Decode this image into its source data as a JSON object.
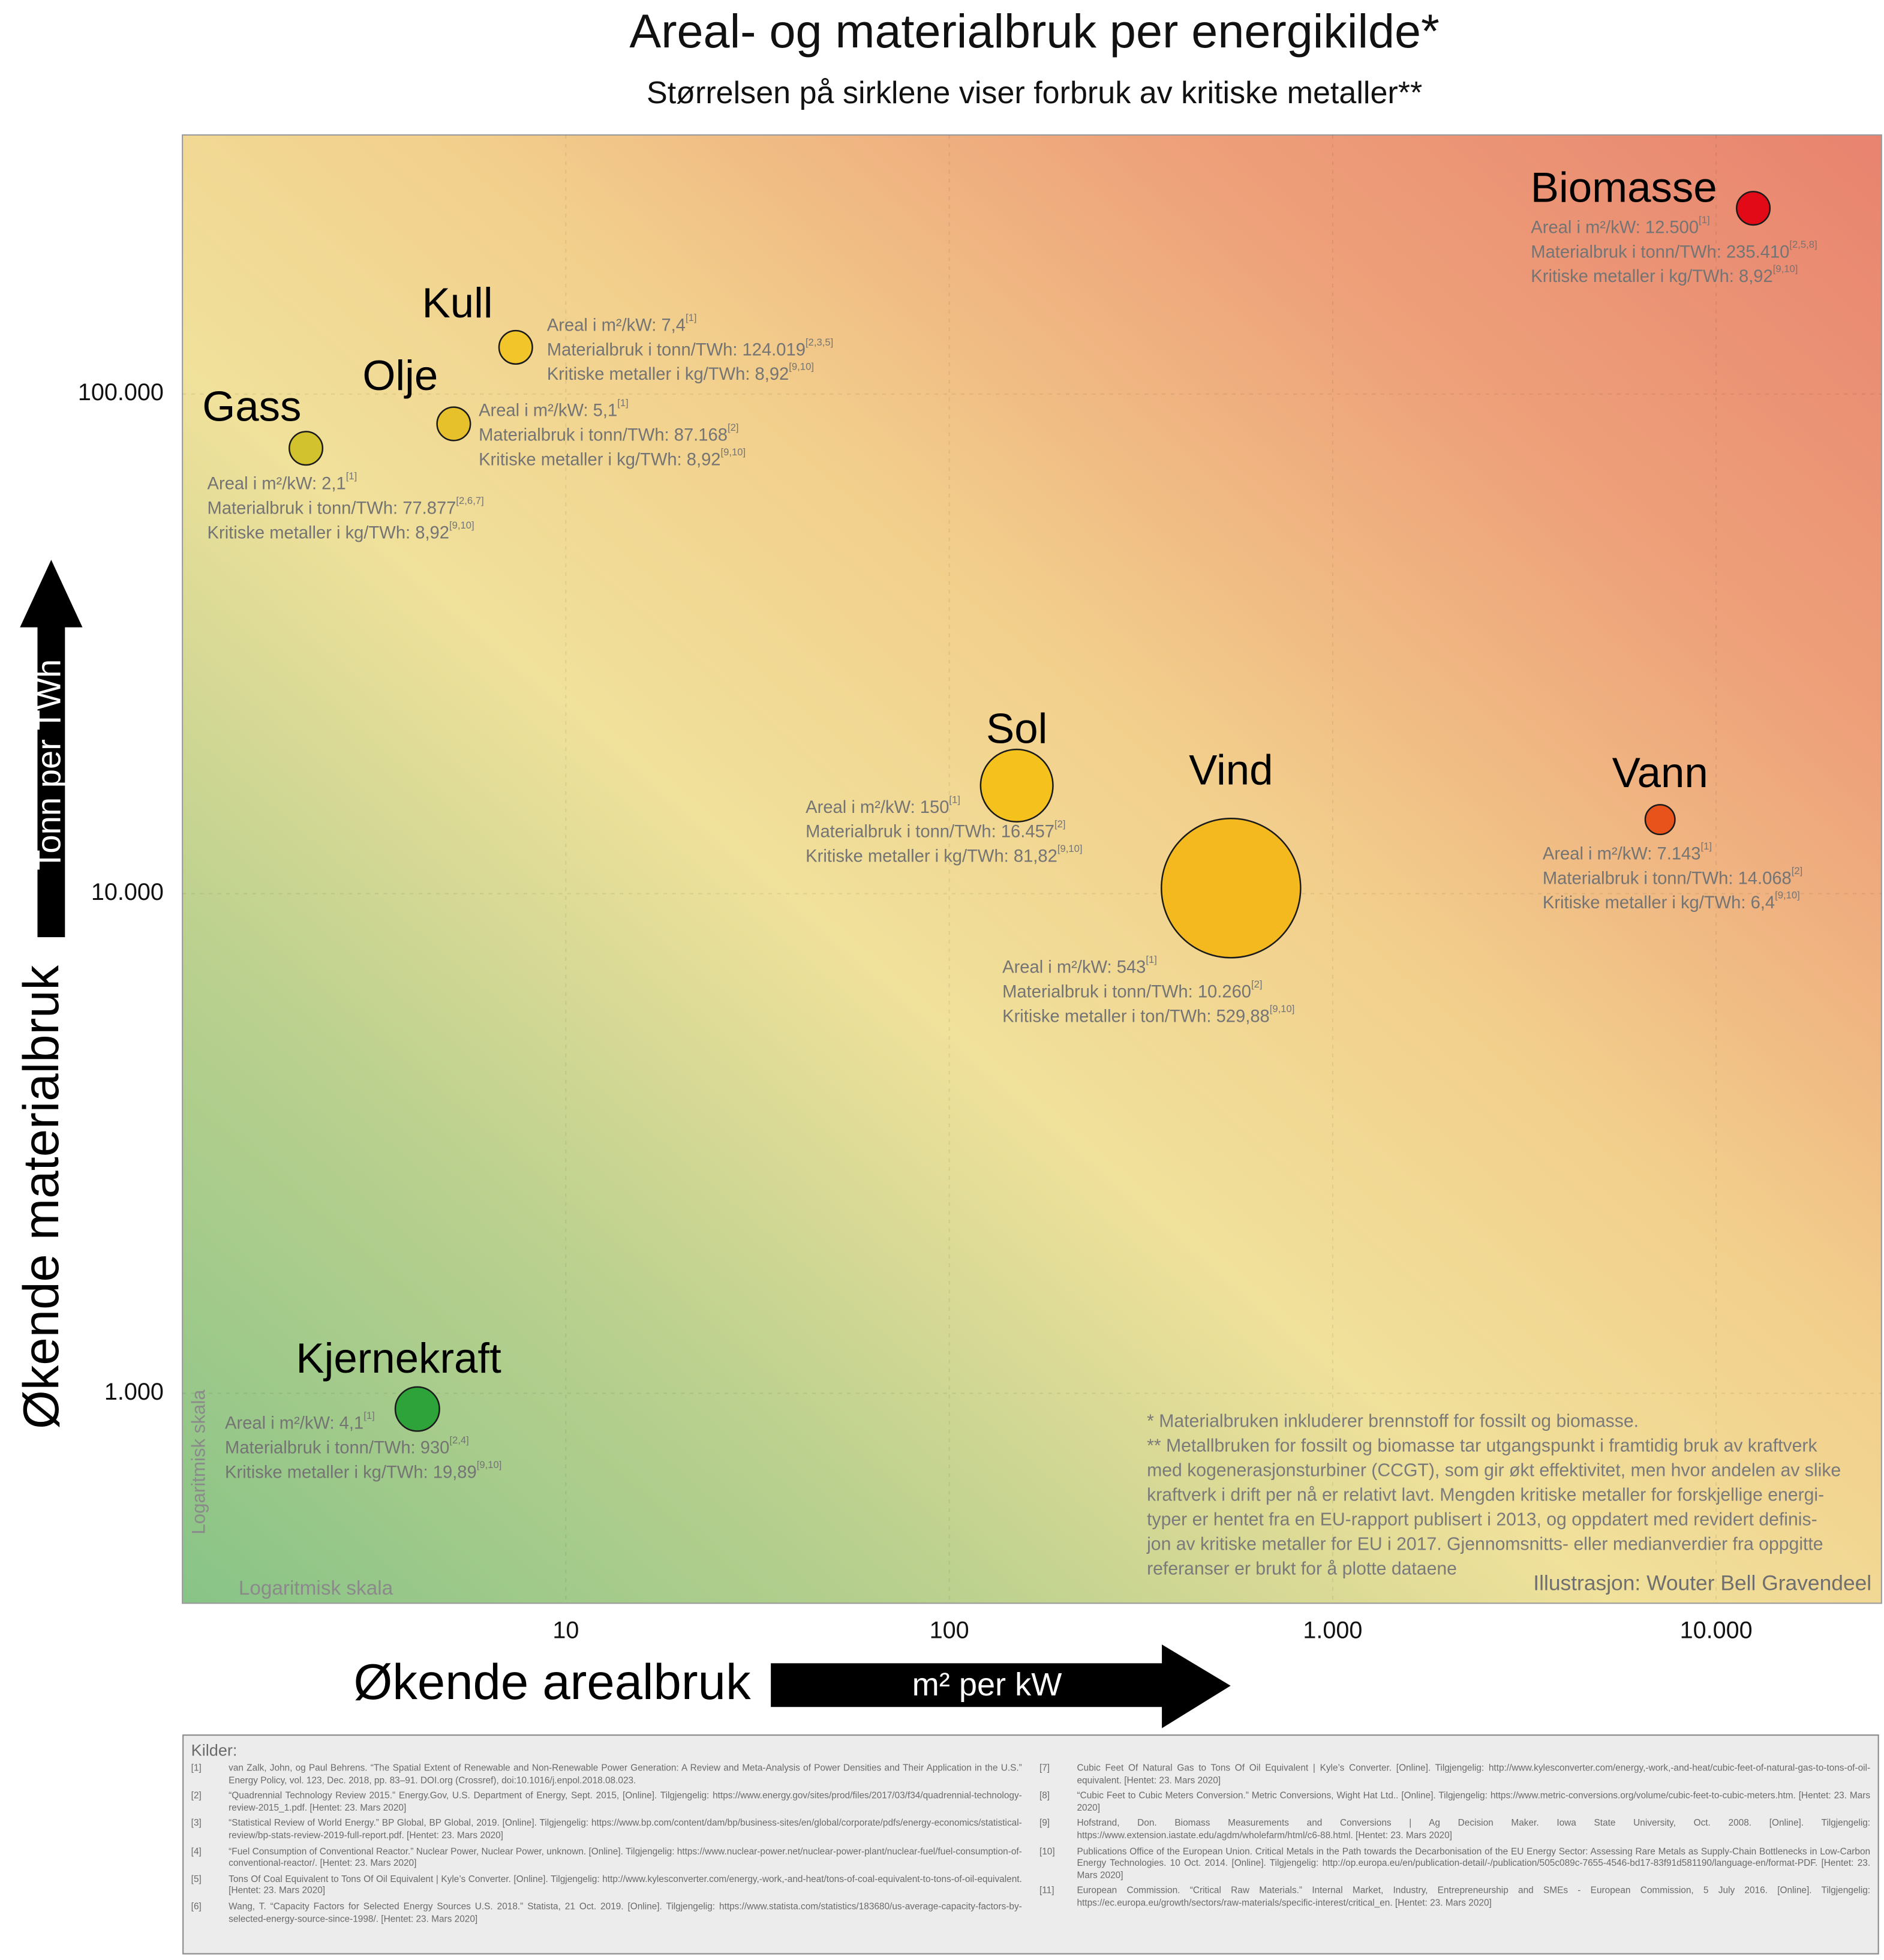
{
  "chart_data": {
    "type": "scatter",
    "title": "Areal- og materialbruk per energikilde*",
    "subtitle": "Størrelsen på sirklene viser forbruk av kritiske metaller**",
    "x_label": "Økende arealbruk",
    "x_unit": "m² per kW",
    "y_label": "Økende materialbruk",
    "y_unit": "Tonn per TWh",
    "scale_note": "Logaritmisk skala",
    "x_scale": "log",
    "y_scale": "log",
    "grid": true,
    "xlim": [
      1,
      27000
    ],
    "ylim": [
      380,
      330000
    ],
    "xticks": [
      10,
      100,
      {
        "value": 1000,
        "label": "1.000"
      },
      {
        "value": 10000,
        "label": "10.000"
      }
    ],
    "yticks": [
      {
        "value": 1000,
        "label": "1.000"
      },
      {
        "value": 10000,
        "label": "10.000"
      },
      {
        "value": 100000,
        "label": "100.000"
      }
    ],
    "series": [
      {
        "name": "Biomasse",
        "color": "#e30a17",
        "x": [
          12500
        ],
        "values": [
          235410
        ],
        "sizes": [
          8.92
        ],
        "details": [
          {
            "text": "Areal i m²/kW: 12.500",
            "ref": "[1]"
          },
          {
            "text": "Materialbruk i tonn/TWh: 235.410",
            "ref": "[2,5,8]"
          },
          {
            "text": "Kritiske metaller i kg/TWh: 8,92",
            "ref": "[9,10]"
          }
        ]
      },
      {
        "name": "Kull",
        "color": "#f2c62a",
        "x": [
          7.4
        ],
        "values": [
          124019
        ],
        "sizes": [
          8.92
        ],
        "details": [
          {
            "text": "Areal i m²/kW: 7,4",
            "ref": "[1]"
          },
          {
            "text": "Materialbruk i tonn/TWh: 124.019",
            "ref": "[2,3,5]"
          },
          {
            "text": "Kritiske metaller i kg/TWh: 8,92",
            "ref": "[9,10]"
          }
        ]
      },
      {
        "name": "Olje",
        "color": "#e6c12c",
        "x": [
          5.1
        ],
        "values": [
          87168
        ],
        "sizes": [
          8.92
        ],
        "details": [
          {
            "text": "Areal i m²/kW: 5,1",
            "ref": "[1]"
          },
          {
            "text": "Materialbruk i tonn/TWh: 87.168",
            "ref": "[2]"
          },
          {
            "text": "Kritiske metaller i kg/TWh: 8,92",
            "ref": "[9,10]"
          }
        ]
      },
      {
        "name": "Gass",
        "color": "#d2c22e",
        "x": [
          2.1
        ],
        "values": [
          77877
        ],
        "sizes": [
          8.92
        ],
        "details": [
          {
            "text": "Areal i m²/kW: 2,1",
            "ref": "[1]"
          },
          {
            "text": "Materialbruk i tonn/TWh: 77.877",
            "ref": "[2,6,7]"
          },
          {
            "text": "Kritiske metaller i kg/TWh: 8,92",
            "ref": "[9,10]"
          }
        ]
      },
      {
        "name": "Sol",
        "color": "#f5c21d",
        "x": [
          150
        ],
        "values": [
          16457
        ],
        "sizes": [
          81.82
        ],
        "details": [
          {
            "text": "Areal i m²/kW: 150",
            "ref": "[1]"
          },
          {
            "text": "Materialbruk i tonn/TWh: 16.457",
            "ref": "[2]"
          },
          {
            "text": "Kritiske metaller i kg/TWh: 81,82",
            "ref": "[9,10]"
          }
        ]
      },
      {
        "name": "Vind",
        "color": "#f3b91f",
        "x": [
          543
        ],
        "values": [
          10260
        ],
        "sizes": [
          529.88
        ],
        "details": [
          {
            "text": "Areal i m²/kW: 543",
            "ref": "[1]"
          },
          {
            "text": "Materialbruk i tonn/TWh: 10.260",
            "ref": "[2]"
          },
          {
            "text": "Kritiske metaller i ton/TWh: 529,88",
            "ref": "[9,10]"
          }
        ]
      },
      {
        "name": "Vann",
        "color": "#e8531c",
        "x": [
          7143
        ],
        "values": [
          14068
        ],
        "sizes": [
          6.4
        ],
        "details": [
          {
            "text": "Areal i m²/kW: 7.143",
            "ref": "[1]"
          },
          {
            "text": "Materialbruk i tonn/TWh: 14.068",
            "ref": "[2]"
          },
          {
            "text": "Kritiske metaller i kg/TWh: 6,4",
            "ref": "[9,10]"
          }
        ]
      },
      {
        "name": "Kjernekraft",
        "color": "#2ea33a",
        "x": [
          4.1
        ],
        "values": [
          930
        ],
        "sizes": [
          19.89
        ],
        "details": [
          {
            "text": "Areal i m²/kW: 4,1",
            "ref": "[1]"
          },
          {
            "text": "Materialbruk i tonn/TWh: 930",
            "ref": "[2,4]"
          },
          {
            "text": "Kritiske metaller i kg/TWh: 19,89",
            "ref": "[9,10]"
          }
        ]
      }
    ],
    "footnote_lines": [
      "* Materialbruken inkluderer brennstoff for fossilt og biomasse.",
      "** Metallbruken for fossilt og biomasse tar utgangspunkt i framtidig bruk av kraftverk",
      "med kogenerasjonsturbiner (CCGT), som gir økt effektivitet, men hvor andelen av slike",
      "kraftverk i drift per nå er relativt lavt. Mengden kritiske metaller for forskjellige energi-",
      "typer er hentet fra en EU-rapport publisert i 2013, og oppdatert med revidert definis-",
      "jon av kritiske metaller for EU i 2017. Gjennomsnitts- eller medianverdier fra oppgitte",
      "referanser er brukt for å plotte dataene"
    ],
    "credit": "Illustrasjon: Wouter Bell Gravendeel"
  },
  "sources": {
    "title": "Kilder:",
    "items": [
      {
        "id": "[1]",
        "text": "van Zalk, John, og Paul Behrens. “The Spatial Extent of Renewable and Non-Renewable Power Generation: A Review and Meta-Analysis of Power Densities and Their Application in the U.S.” Energy Policy, vol. 123, Dec. 2018, pp. 83–91. DOI.org (Crossref), doi:10.1016/j.enpol.2018.08.023."
      },
      {
        "id": "[2]",
        "text": "“Quadrennial Technology Review 2015.” Energy.Gov, U.S. Department of Energy, Sept. 2015, [Online]. Tilgjengelig: https://www.energy.gov/sites/prod/files/2017/03/f34/quadrennial-technology-review-2015_1.pdf. [Hentet: 23. Mars 2020]"
      },
      {
        "id": "[3]",
        "text": "“Statistical Review of World Energy.” BP Global, BP Global, 2019. [Online]. Tilgjengelig: https://www.bp.com/content/dam/bp/business-sites/en/global/corporate/pdfs/energy-economics/statistical- review/bp-stats-review-2019-full-report.pdf. [Hentet: 23. Mars 2020]"
      },
      {
        "id": "[4]",
        "text": "“Fuel Consumption of Conventional Reactor.” Nuclear Power, Nuclear Power, unknown. [Online]. Tilgjengelig: https://www.nuclear-power.net/nuclear-power-plant/nuclear-fuel/fuel-consumption-of-conventional-reactor/. [Hentet: 23. Mars 2020]"
      },
      {
        "id": "[5]",
        "text": "Tons Of Coal Equivalent to Tons Of Oil Equivalent | Kyle’s Converter. [Online]. Tilgjengelig: http://www.kylesconverter.com/energy,-work,-and-heat/tons-of-coal-equivalent-to-tons-of-oil-equivalent. [Hentet: 23. Mars 2020]"
      },
      {
        "id": "[6]",
        "text": "Wang, T. “Capacity Factors for Selected Energy Sources U.S. 2018.” Statista, 21 Oct. 2019. [Online]. Tilgjengelig: https://www.statista.com/statistics/183680/us-average-capacity-factors-by-selected-energy-source-since-1998/. [Hentet: 23. Mars 2020]"
      },
      {
        "id": "[7]",
        "text": "Cubic Feet Of Natural Gas to Tons Of Oil Equivalent | Kyle’s Converter. [Online]. Tilgjengelig: http://www.kylesconverter.com/energy,-work,-and-heat/cubic-feet-of-natural-gas-to-tons-of-oil-equivalent. [Hentet: 23. Mars 2020]"
      },
      {
        "id": "[8]",
        "text": "“Cubic Feet to Cubic Meters Conversion.” Metric Conversions, Wight Hat Ltd.. [Online]. Tilgjengelig: https://www.metric-conversions.org/volume/cubic-feet-to-cubic-meters.htm. [Hentet: 23. Mars 2020]"
      },
      {
        "id": "[9]",
        "text": "Hofstrand, Don. Biomass Measurements and Conversions | Ag Decision Maker. Iowa State University, Oct. 2008. [Online]. Tilgjengelig: https://www.extension.iastate.edu/agdm/wholefarm/html/c6-88.html. [Hentet: 23. Mars 2020]"
      },
      {
        "id": "[10]",
        "text": "Publications Office of the European Union. Critical Metals in the Path towards the Decarbonisation of the EU Energy Sector: Assessing Rare Metals as Supply-Chain Bottlenecks in Low-Carbon Energy Technologies. 10 Oct. 2014. [Online]. Tilgjengelig: http://op.europa.eu/en/publication-detail/-/publication/505c089c-7655-4546-bd17-83f91d581190/language-en/format-PDF. [Hentet: 23. Mars 2020]"
      },
      {
        "id": "[11]",
        "text": "European Commission. “Critical Raw Materials.” Internal Market, Industry, Entrepreneurship and SMEs - European Commission, 5 July 2016. [Online]. Tilgjengelig: https://ec.europa.eu/growth/sectors/raw-materials/specific-interest/critical_en. [Hentet: 23. Mars 2020]"
      }
    ]
  }
}
